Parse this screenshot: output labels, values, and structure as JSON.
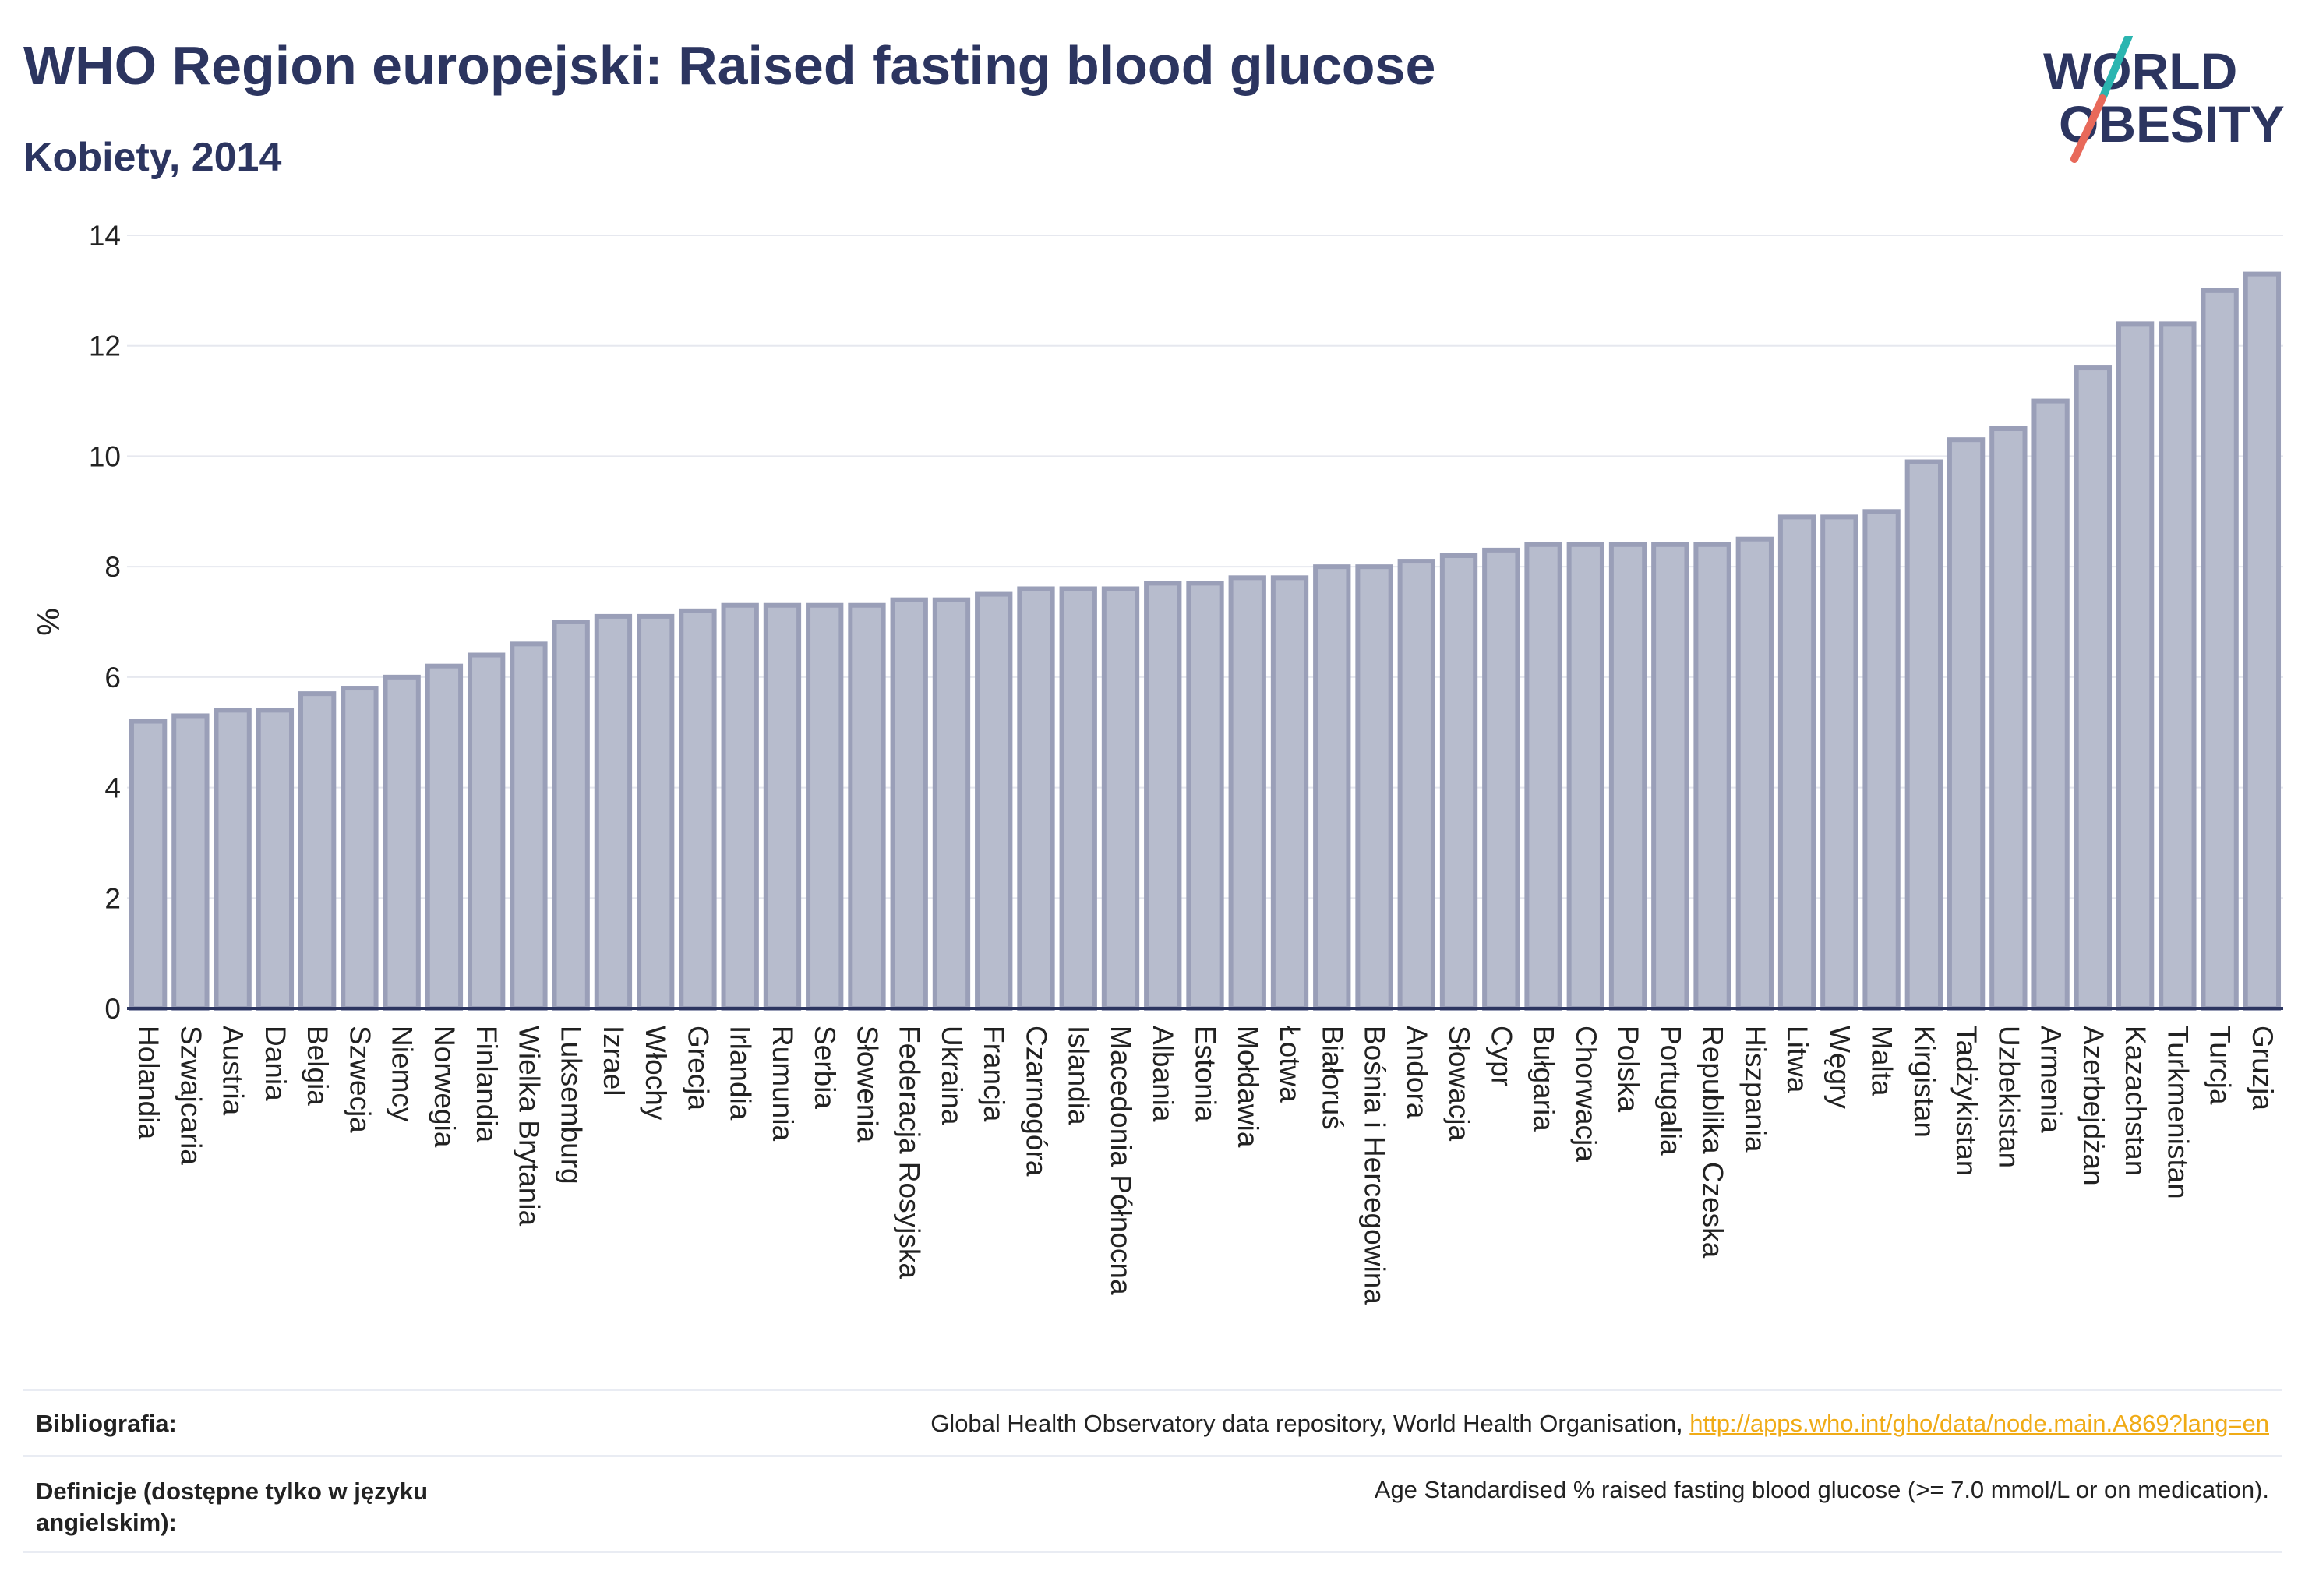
{
  "header": {
    "title": "WHO Region europejski: Raised fasting blood glucose",
    "subtitle": "Kobiety, 2014"
  },
  "logo": {
    "line1": "WORLD",
    "line2": "OBESITY",
    "accent_colors": [
      "#2bb5b0",
      "#e8695a"
    ],
    "text_color": "#2c3560"
  },
  "chart_data": {
    "type": "bar",
    "title": "WHO Region europejski: Raised fasting blood glucose",
    "subtitle": "Kobiety, 2014",
    "xlabel": "",
    "ylabel": "%",
    "ylim": [
      0,
      14
    ],
    "yticks": [
      0,
      2,
      4,
      6,
      8,
      10,
      12,
      14
    ],
    "grid": true,
    "bar_color": "#b7bccd",
    "bar_edge_color": "#9a9fb8",
    "categories": [
      "Holandia",
      "Szwajcaria",
      "Austria",
      "Dania",
      "Belgia",
      "Szwecja",
      "Niemcy",
      "Norwegia",
      "Finlandia",
      "Wielka Brytania",
      "Luksemburg",
      "Izrael",
      "Włochy",
      "Grecja",
      "Irlandia",
      "Rumunia",
      "Serbia",
      "Słowenia",
      "Federacja Rosyjska",
      "Ukraina",
      "Francja",
      "Czarnogóra",
      "Islandia",
      "Macedonia Północna",
      "Albania",
      "Estonia",
      "Mołdawia",
      "Łotwa",
      "Białoruś",
      "Bośnia i Hercegowina",
      "Andora",
      "Słowacja",
      "Cypr",
      "Bułgaria",
      "Chorwacja",
      "Polska",
      "Portugalia",
      "Republika Czeska",
      "Hiszpania",
      "Litwa",
      "Węgry",
      "Malta",
      "Kirgistan",
      "Tadżykistan",
      "Uzbekistan",
      "Armenia",
      "Azerbejdżan",
      "Kazachstan",
      "Turkmenistan",
      "Turcja",
      "Gruzja"
    ],
    "values": [
      5.2,
      5.3,
      5.4,
      5.4,
      5.7,
      5.8,
      6.0,
      6.2,
      6.4,
      6.6,
      7.0,
      7.1,
      7.1,
      7.2,
      7.3,
      7.3,
      7.3,
      7.3,
      7.4,
      7.4,
      7.5,
      7.6,
      7.6,
      7.6,
      7.7,
      7.7,
      7.8,
      7.8,
      8.0,
      8.0,
      8.1,
      8.2,
      8.3,
      8.4,
      8.4,
      8.4,
      8.4,
      8.4,
      8.5,
      8.9,
      8.9,
      9.0,
      9.9,
      10.3,
      10.5,
      11.0,
      11.6,
      12.4,
      12.4,
      13.0,
      13.3
    ]
  },
  "footer": {
    "bibliography_label": "Bibliografia:",
    "bibliography_text": "Global Health Observatory data repository, World Health Organisation, ",
    "bibliography_link": "http://apps.who.int/gho/data/node.main.A869?lang=en",
    "definitions_label": "Definicje (dostępne tylko w języku angielskim):",
    "definitions_text": "Age Standardised % raised fasting blood glucose (>= 7.0 mmol/L or on medication)."
  }
}
